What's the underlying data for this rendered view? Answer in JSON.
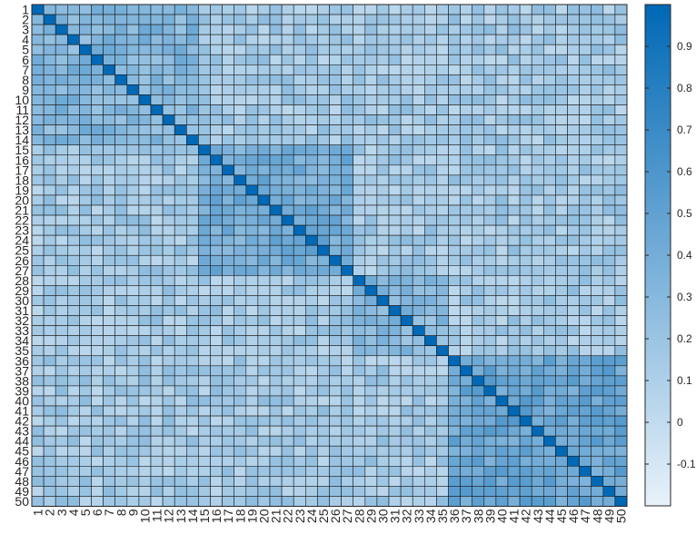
{
  "chart_data": {
    "type": "heatmap",
    "title": "",
    "xlabel": "",
    "ylabel": "",
    "n": 50,
    "row_labels": [
      "1",
      "2",
      "3",
      "4",
      "5",
      "6",
      "7",
      "8",
      "9",
      "10",
      "11",
      "12",
      "13",
      "14",
      "15",
      "16",
      "17",
      "18",
      "19",
      "20",
      "21",
      "22",
      "23",
      "24",
      "25",
      "26",
      "27",
      "28",
      "29",
      "30",
      "31",
      "32",
      "33",
      "34",
      "35",
      "36",
      "37",
      "38",
      "39",
      "40",
      "41",
      "42",
      "43",
      "44",
      "45",
      "46",
      "47",
      "48",
      "49",
      "50"
    ],
    "col_labels": [
      "1",
      "2",
      "3",
      "4",
      "5",
      "6",
      "7",
      "8",
      "9",
      "10",
      "11",
      "12",
      "13",
      "14",
      "15",
      "16",
      "17",
      "18",
      "19",
      "20",
      "21",
      "22",
      "23",
      "24",
      "25",
      "26",
      "27",
      "28",
      "29",
      "30",
      "31",
      "32",
      "33",
      "34",
      "35",
      "36",
      "37",
      "38",
      "39",
      "40",
      "41",
      "42",
      "43",
      "44",
      "45",
      "46",
      "47",
      "48",
      "49",
      "50"
    ],
    "diagonal_value": 1.0,
    "blocks": [
      {
        "rows": [
          1,
          14
        ],
        "cols": [
          1,
          14
        ],
        "mean": 0.32
      },
      {
        "rows": [
          15,
          27
        ],
        "cols": [
          15,
          27
        ],
        "mean": 0.4
      },
      {
        "rows": [
          28,
          35
        ],
        "cols": [
          28,
          35
        ],
        "mean": 0.3
      },
      {
        "rows": [
          36,
          50
        ],
        "cols": [
          36,
          50
        ],
        "mean": 0.45
      }
    ],
    "off_block_mean": 0.15,
    "value_spread": 0.12,
    "symmetric": true,
    "colorbar": {
      "min": -0.2,
      "max": 1.0,
      "ticks": [
        -0.1,
        0,
        0.1,
        0.2,
        0.3,
        0.4,
        0.5,
        0.6,
        0.7,
        0.8,
        0.9
      ],
      "tick_labels": [
        "-0.1",
        "0",
        "0.1",
        "0.2",
        "0.3",
        "0.4",
        "0.5",
        "0.6",
        "0.7",
        "0.8",
        "0.9"
      ],
      "low_color": "#e8f2fa",
      "high_color": "#0068b5"
    },
    "grid": true
  }
}
